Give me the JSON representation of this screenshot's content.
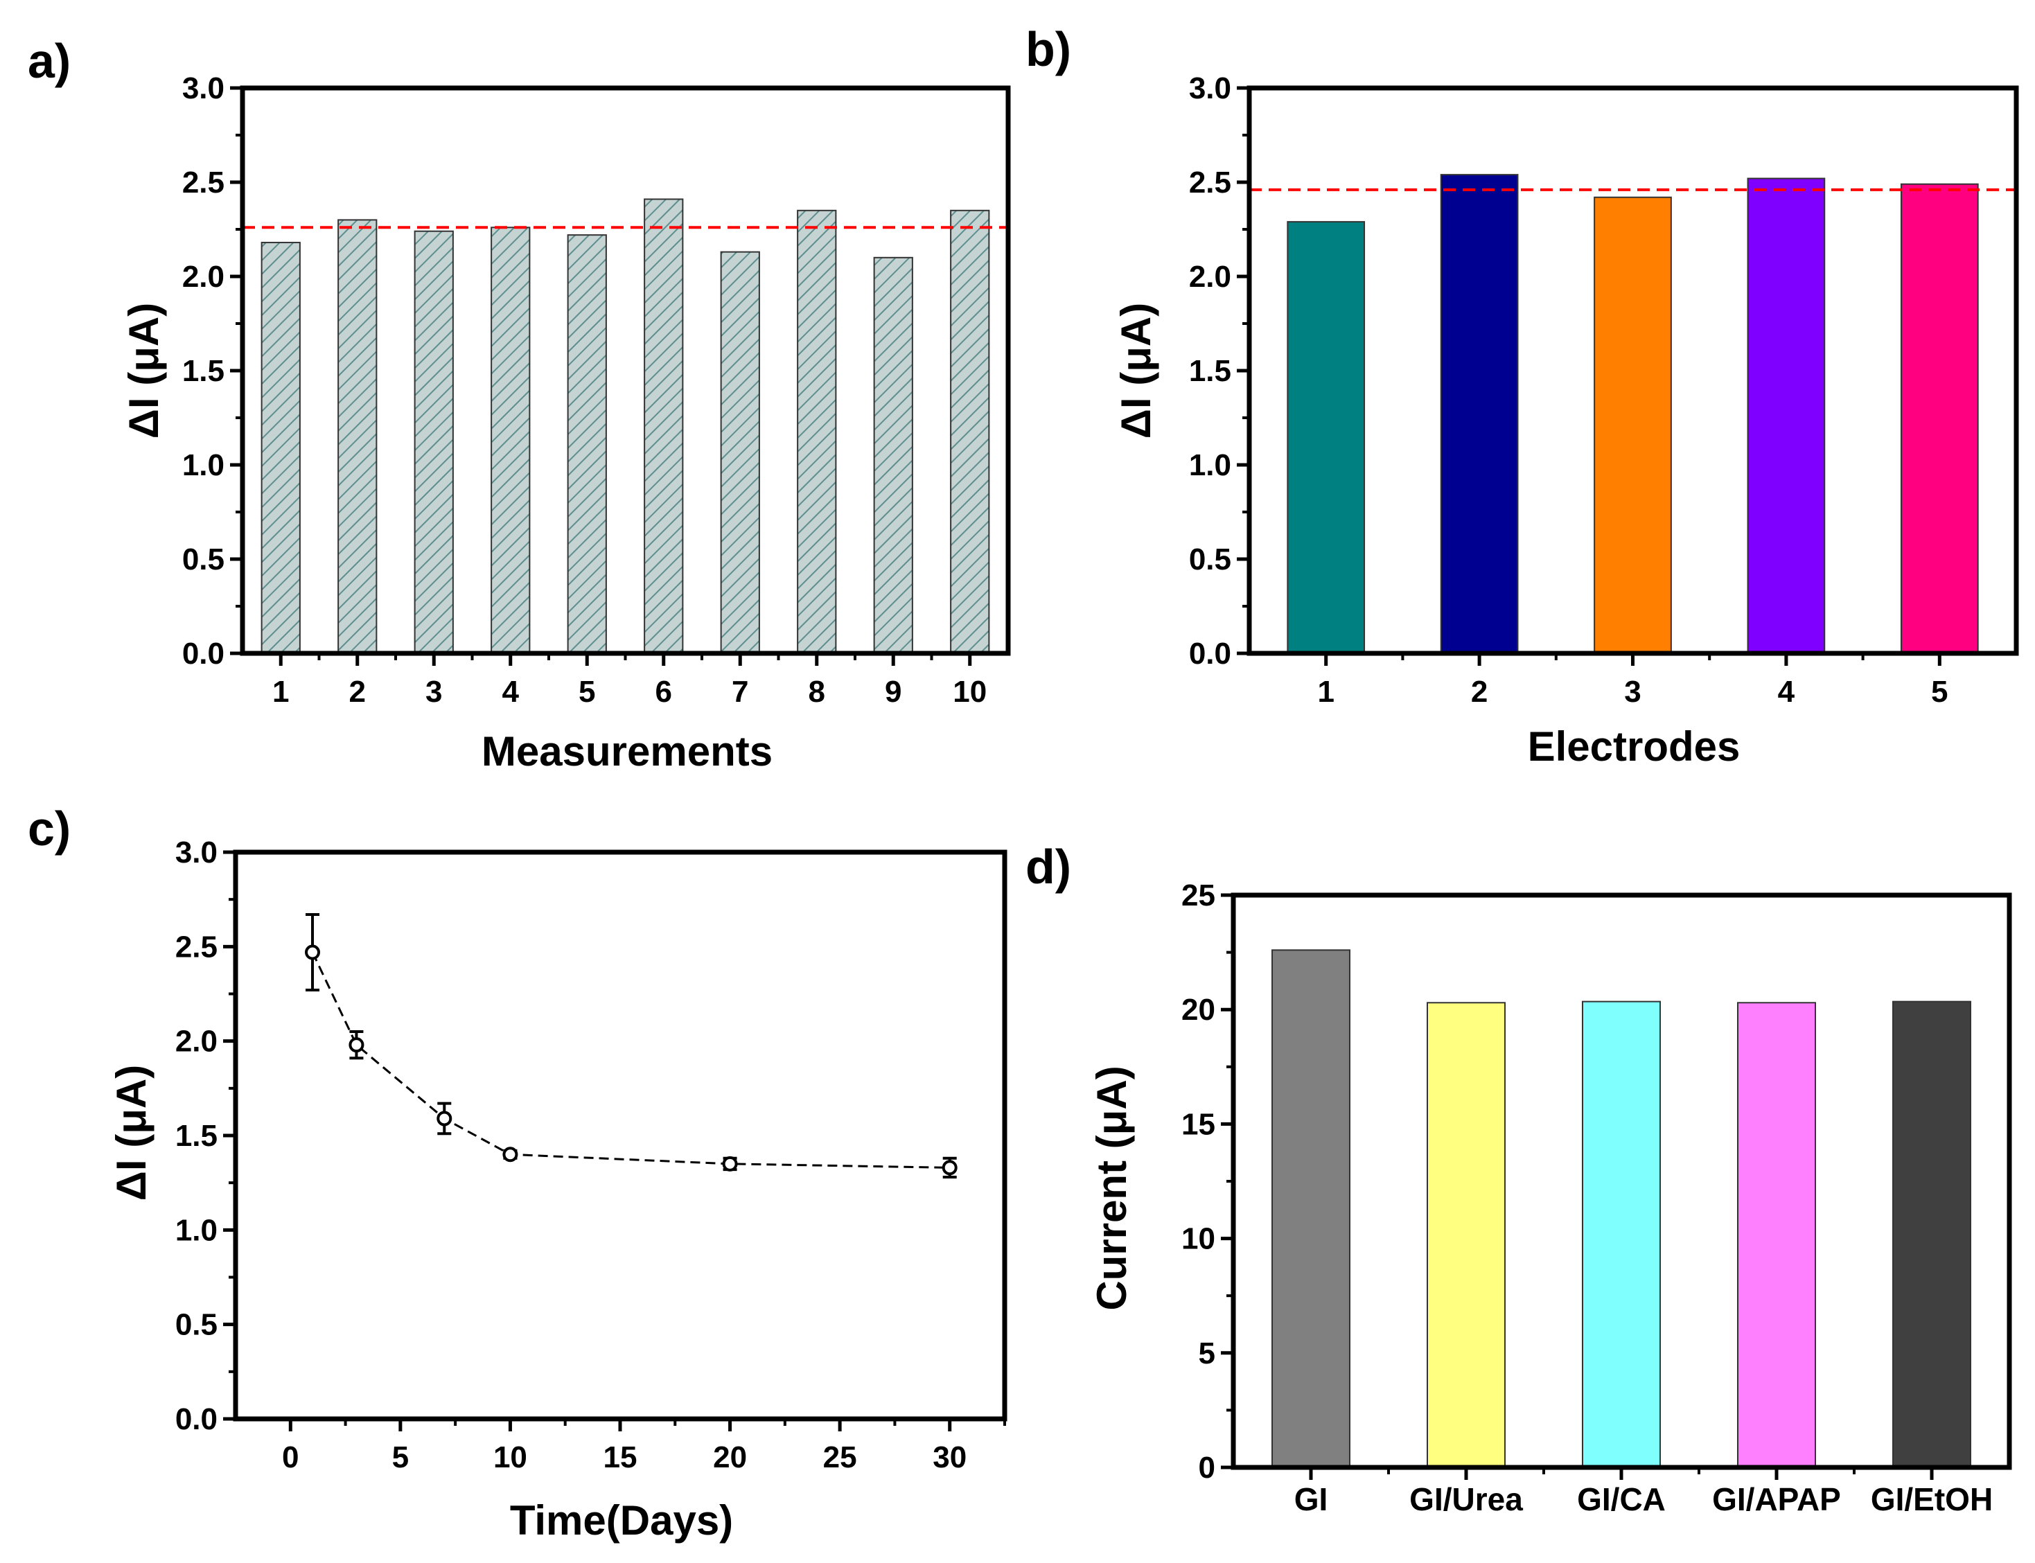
{
  "chart_data": [
    {
      "panel": "a)",
      "type": "bar",
      "categories": [
        "1",
        "2",
        "3",
        "4",
        "5",
        "6",
        "7",
        "8",
        "9",
        "10"
      ],
      "values": [
        2.18,
        2.3,
        2.24,
        2.26,
        2.22,
        2.41,
        2.13,
        2.35,
        2.1,
        2.35
      ],
      "bar_fill": "#c5d3d3",
      "bar_hatch_color": "#5e8e8e",
      "reference_line": 2.26,
      "reference_color": "#ff0000",
      "xlabel": "Measurements",
      "ylabel": "ΔI (μA)",
      "ylim": [
        0,
        3.0
      ],
      "yticks": [
        "0.0",
        "0.5",
        "1.0",
        "1.5",
        "2.0",
        "2.5",
        "3.0"
      ]
    },
    {
      "panel": "b)",
      "type": "bar",
      "categories": [
        "1",
        "2",
        "3",
        "4",
        "5"
      ],
      "values": [
        2.29,
        2.54,
        2.42,
        2.52,
        2.49
      ],
      "colors": [
        "#008080",
        "#000090",
        "#ff8000",
        "#8000ff",
        "#ff0080"
      ],
      "reference_line": 2.46,
      "reference_color": "#ff0000",
      "xlabel": "Electrodes",
      "ylabel": "ΔI (μA)",
      "ylim": [
        0,
        3.0
      ],
      "yticks": [
        "0.0",
        "0.5",
        "1.0",
        "1.5",
        "2.0",
        "2.5",
        "3.0"
      ]
    },
    {
      "panel": "c)",
      "type": "scatter",
      "x": [
        1,
        3,
        7,
        10,
        20,
        30
      ],
      "y": [
        2.47,
        1.98,
        1.59,
        1.4,
        1.35,
        1.33
      ],
      "yerr": [
        0.2,
        0.07,
        0.08,
        0.02,
        0.03,
        0.05
      ],
      "xlabel": "Time(Days)",
      "ylabel": "ΔI (μA)",
      "xlim": [
        -2.5,
        32.5
      ],
      "ylim": [
        0,
        3.0
      ],
      "xticks": [
        "0",
        "5",
        "10",
        "15",
        "20",
        "25",
        "30"
      ],
      "yticks": [
        "0.0",
        "0.5",
        "1.0",
        "1.5",
        "2.0",
        "2.5",
        "3.0"
      ]
    },
    {
      "panel": "d)",
      "type": "bar",
      "categories": [
        "GI",
        "GI/Urea",
        "GI/CA",
        "GI/APAP",
        "GI/EtOH"
      ],
      "values": [
        22.6,
        20.3,
        20.35,
        20.3,
        20.35
      ],
      "colors": [
        "#808080",
        "#ffff80",
        "#80ffff",
        "#ff80ff",
        "#404040"
      ],
      "xlabel": "",
      "ylabel": "Current (μA)",
      "ylim": [
        0,
        25
      ],
      "yticks": [
        "0",
        "5",
        "10",
        "15",
        "20",
        "25"
      ]
    }
  ]
}
